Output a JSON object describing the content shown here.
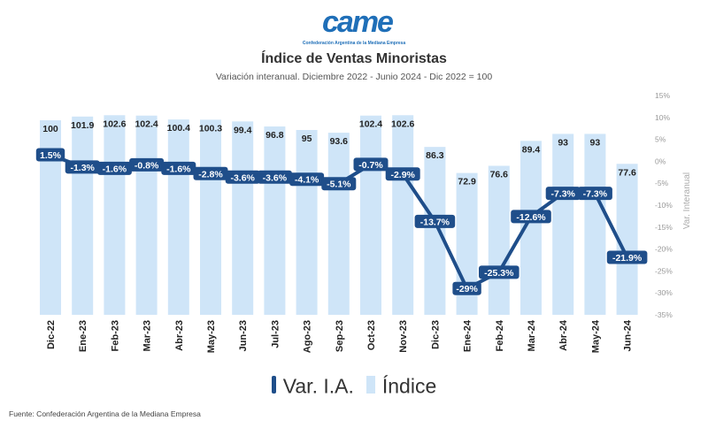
{
  "logo": {
    "text": "came",
    "subtitle": "Confederación Argentina de la Mediana Empresa"
  },
  "title": "Índice de Ventas Minoristas",
  "subtitle": "Variación interanual. Diciembre 2022 - Junio 2024 - Dic 2022 = 100",
  "source": "Fuente: Confederación Argentina de la Mediana Empresa",
  "colors": {
    "bar": "#cfe5f8",
    "line": "#1f4e8a"
  },
  "chart_data": {
    "type": "bar",
    "categories": [
      "Dic-22",
      "Ene-23",
      "Feb-23",
      "Mar-23",
      "Abr-23",
      "May-23",
      "Jun-23",
      "Jul-23",
      "Ago-23",
      "Sep-23",
      "Oct-23",
      "Nov-23",
      "Dic-23",
      "Ene-24",
      "Feb-24",
      "Mar-24",
      "Abr-24",
      "May-24",
      "Jun-24"
    ],
    "series": [
      {
        "name": "Índice",
        "type": "bar",
        "axis": "left",
        "values": [
          100,
          101.9,
          102.6,
          102.4,
          100.4,
          100.3,
          99.4,
          96.8,
          95,
          93.6,
          102.4,
          102.6,
          86.3,
          72.9,
          76.6,
          89.4,
          93,
          93,
          77.6
        ],
        "labels": [
          "100",
          "101.9",
          "102.6",
          "102.4",
          "100.4",
          "100.3",
          "99.4",
          "96.8",
          "95",
          "93.6",
          "102.4",
          "102.6",
          "86.3",
          "72.9",
          "76.6",
          "89.4",
          "93",
          "93",
          "77.6"
        ]
      },
      {
        "name": "Var. I.A.",
        "type": "line",
        "axis": "right",
        "values": [
          1.5,
          -1.3,
          -1.6,
          -0.8,
          -1.6,
          -2.8,
          -3.6,
          -3.6,
          -4.1,
          -5.1,
          -0.7,
          -2.9,
          -13.7,
          -29,
          -25.3,
          -12.6,
          -7.3,
          -7.3,
          -21.9
        ],
        "labels": [
          "1.5%",
          "-1.3%",
          "-1.6%",
          "-0.8%",
          "-1.6%",
          "-2.8%",
          "-3.6%",
          "-3.6%",
          "-4.1%",
          "-5.1%",
          "-0.7%",
          "-2.9%",
          "-13.7%",
          "-29%",
          "-25.3%",
          "-12.6%",
          "-7.3%",
          "-7.3%",
          "-21.9%"
        ]
      }
    ],
    "y_right": {
      "label": "Var. Interanual",
      "range": [
        -35,
        15
      ],
      "ticks": [
        15,
        10,
        5,
        0,
        -5,
        -10,
        -15,
        -20,
        -25,
        -30,
        -35
      ],
      "tick_labels": [
        "15%",
        "10%",
        "5%",
        "0%",
        "-5%",
        "-10%",
        "-15%",
        "-20%",
        "-25%",
        "-30%",
        "-35%"
      ]
    },
    "legend": {
      "position": "bottom"
    },
    "grid": false
  }
}
